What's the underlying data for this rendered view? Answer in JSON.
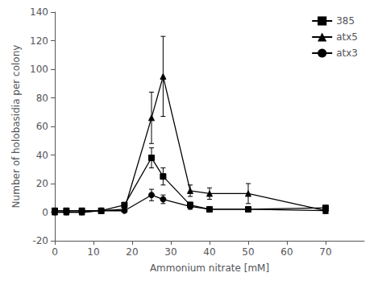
{
  "chart_data": {
    "type": "line",
    "xlabel": "Ammonium nitrate [mM]",
    "ylabel": "Number of holobasidia per colony",
    "xlim": [
      0,
      80
    ],
    "ylim": [
      -20,
      140
    ],
    "xticks": [
      0,
      10,
      20,
      30,
      40,
      50,
      60,
      70
    ],
    "yticks": [
      -20,
      0,
      20,
      40,
      60,
      80,
      100,
      120,
      140
    ],
    "grid": false,
    "legend": "upper right",
    "x": [
      0,
      3,
      7,
      12,
      18,
      25,
      28,
      35,
      40,
      50,
      70
    ],
    "series": [
      {
        "name": "385",
        "marker": "square",
        "color": "#000000",
        "values": [
          1,
          1,
          1,
          1,
          5,
          38,
          25,
          5,
          2,
          2,
          3
        ],
        "yerr": [
          0.5,
          0.5,
          0.5,
          0.5,
          1,
          7,
          6,
          2,
          1,
          1,
          1
        ]
      },
      {
        "name": "atx5",
        "marker": "triangle",
        "color": "#000000",
        "values": [
          0,
          0,
          0,
          1,
          2,
          66,
          95,
          15,
          13,
          13,
          1
        ],
        "yerr": [
          0.3,
          0.3,
          0.3,
          0.5,
          1,
          18,
          28,
          4,
          4,
          7,
          1
        ]
      },
      {
        "name": "atx3",
        "marker": "circle",
        "color": "#000000",
        "values": [
          0,
          0,
          0,
          1,
          1,
          12,
          9,
          4,
          2,
          2,
          1
        ],
        "yerr": [
          0.3,
          0.3,
          0.3,
          0.5,
          0.5,
          4,
          3,
          2,
          1,
          1,
          1
        ]
      }
    ]
  }
}
